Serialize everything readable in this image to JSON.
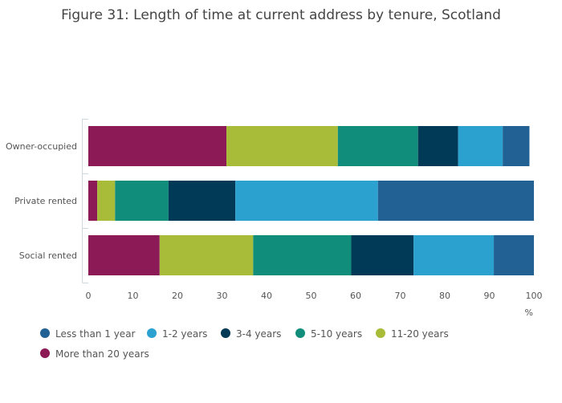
{
  "chart_data": {
    "type": "bar",
    "orientation": "horizontal",
    "stacked": true,
    "title": "Figure 31: Length of time at current address by tenure, Scotland",
    "categories": [
      "Owner-occupied",
      "Private rented",
      "Social rented"
    ],
    "xlabel": "%",
    "xlim": [
      0,
      100
    ],
    "xticks": [
      "0",
      "10",
      "20",
      "30",
      "40",
      "50",
      "60",
      "70",
      "80",
      "90",
      "100"
    ],
    "series": [
      {
        "name": "More than 20 years",
        "color": "#8B1A57",
        "values": [
          31,
          2,
          16
        ]
      },
      {
        "name": "11-20 years",
        "color": "#A8BC3A",
        "values": [
          25,
          4,
          21
        ]
      },
      {
        "name": "5-10 years",
        "color": "#118E7B",
        "values": [
          18,
          12,
          22
        ]
      },
      {
        "name": "3-4 years",
        "color": "#003A56",
        "values": [
          9,
          15,
          14
        ]
      },
      {
        "name": "1-2 years",
        "color": "#2AA1CF",
        "values": [
          10,
          32,
          18
        ]
      },
      {
        "name": "Less than 1 year",
        "color": "#226193",
        "values": [
          6,
          35,
          9
        ]
      }
    ],
    "legend": [
      {
        "name": "Less than 1 year",
        "color": "#226193"
      },
      {
        "name": "1-2 years",
        "color": "#2AA1CF"
      },
      {
        "name": "3-4 years",
        "color": "#003A56"
      },
      {
        "name": "5-10 years",
        "color": "#118E7B"
      },
      {
        "name": "11-20 years",
        "color": "#A8BC3A"
      },
      {
        "name": "More than 20 years",
        "color": "#8B1A57"
      }
    ]
  }
}
